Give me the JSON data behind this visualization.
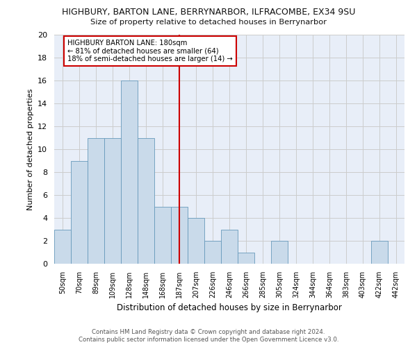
{
  "title": "HIGHBURY, BARTON LANE, BERRYNARBOR, ILFRACOMBE, EX34 9SU",
  "subtitle": "Size of property relative to detached houses in Berrynarbor",
  "xlabel": "Distribution of detached houses by size in Berrynarbor",
  "ylabel": "Number of detached properties",
  "bar_labels": [
    "50sqm",
    "70sqm",
    "89sqm",
    "109sqm",
    "128sqm",
    "148sqm",
    "168sqm",
    "187sqm",
    "207sqm",
    "226sqm",
    "246sqm",
    "266sqm",
    "285sqm",
    "305sqm",
    "324sqm",
    "344sqm",
    "364sqm",
    "383sqm",
    "403sqm",
    "422sqm",
    "442sqm"
  ],
  "bar_values": [
    3,
    9,
    11,
    11,
    16,
    11,
    5,
    5,
    4,
    2,
    3,
    1,
    0,
    2,
    0,
    0,
    0,
    0,
    0,
    2,
    0
  ],
  "bar_color": "#c9daea",
  "bar_edgecolor": "#6699bb",
  "vline_x": 7.0,
  "property_line_label": "HIGHBURY BARTON LANE: 180sqm",
  "annotation_line1": "← 81% of detached houses are smaller (64)",
  "annotation_line2": "18% of semi-detached houses are larger (14) →",
  "annotation_box_color": "#ffffff",
  "annotation_box_edgecolor": "#cc0000",
  "vline_color": "#cc0000",
  "ylim": [
    0,
    20
  ],
  "yticks": [
    0,
    2,
    4,
    6,
    8,
    10,
    12,
    14,
    16,
    18,
    20
  ],
  "grid_color": "#cccccc",
  "bg_color": "#e8eef8",
  "fig_bg_color": "#ffffff",
  "footer1": "Contains HM Land Registry data © Crown copyright and database right 2024.",
  "footer2": "Contains public sector information licensed under the Open Government Licence v3.0."
}
